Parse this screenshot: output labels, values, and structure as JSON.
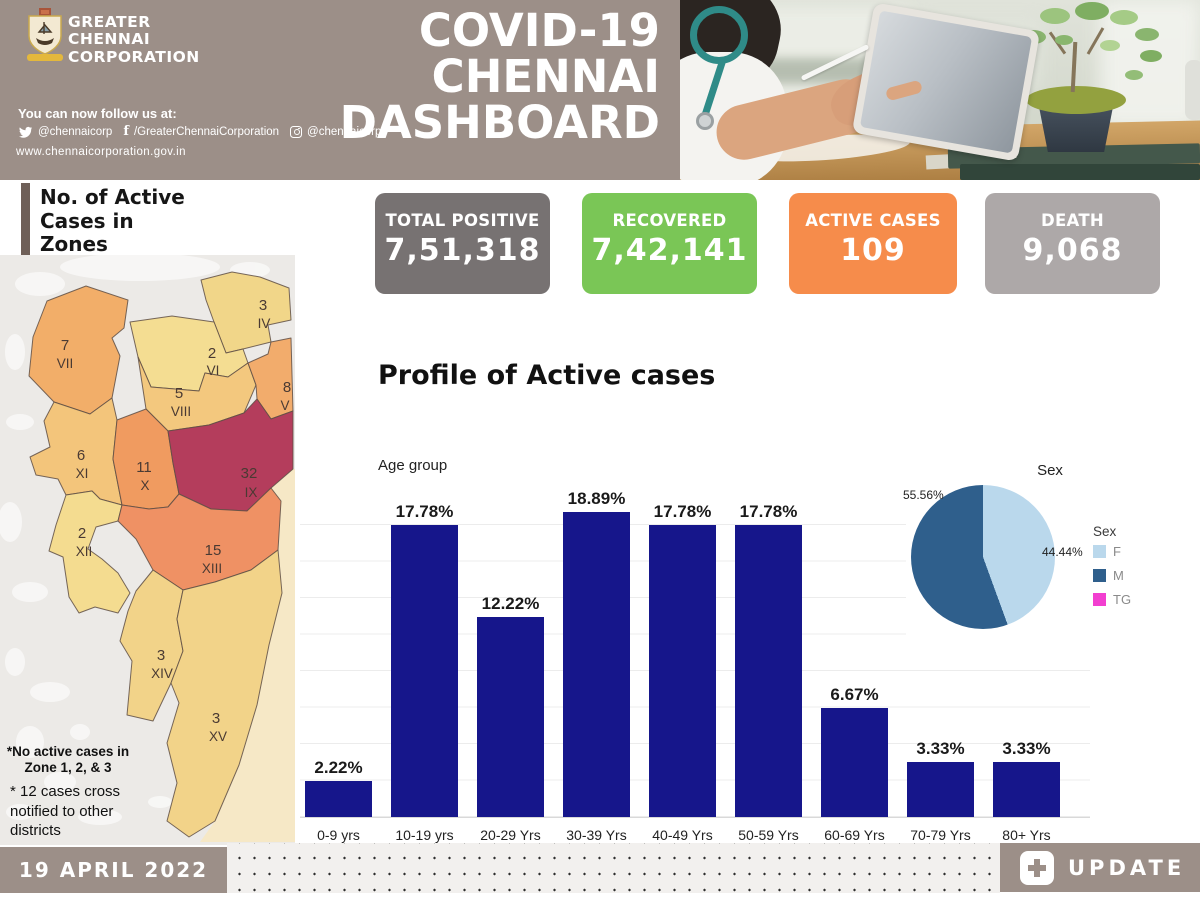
{
  "colors": {
    "brand_taupe": "#9C8F88",
    "bar_navy": "#16168B",
    "card_total": "#777272",
    "card_recovered": "#7AC656",
    "card_active": "#F68C4B",
    "card_death": "#ADA8A8"
  },
  "header": {
    "org_name_lines": [
      "GREATER",
      "CHENNAI",
      "CORPORATION"
    ],
    "follow_text": "You can now follow us at:",
    "social": {
      "twitter_handle": "@chennaicorp",
      "facebook_handle": "/GreaterChennaiCorporation",
      "instagram_handle": "@chennaicorp"
    },
    "website": "www.chennaicorporation.gov.in",
    "title_lines": [
      "COVID-19",
      "CHENNAI",
      "DASHBOARD"
    ]
  },
  "stats": [
    {
      "label": "TOTAL POSITIVE",
      "value": "7,51,318",
      "color": "#777272"
    },
    {
      "label": "RECOVERED",
      "value": "7,42,141",
      "color": "#7AC656"
    },
    {
      "label": "ACTIVE CASES",
      "value": "109",
      "color": "#F68C4B"
    },
    {
      "label": "DEATH",
      "value": "9,068",
      "color": "#ADA8A8"
    }
  ],
  "map": {
    "title_lines": [
      "No. of Active",
      "Cases in",
      "Zones"
    ],
    "zones": [
      {
        "id": "VII",
        "cases": "7",
        "numeral": "VII",
        "color": "#F2AE69"
      },
      {
        "id": "IV",
        "cases": "3",
        "numeral": "IV",
        "color": "#F1D689"
      },
      {
        "id": "VI",
        "cases": "2",
        "numeral": "VI",
        "color": "#F4DD92"
      },
      {
        "id": "VIII",
        "cases": "5",
        "numeral": "VIII",
        "color": "#F3C87E"
      },
      {
        "id": "V",
        "cases": "8",
        "numeral": "V",
        "color": "#F2AC6C"
      },
      {
        "id": "XI",
        "cases": "6",
        "numeral": "XI",
        "color": "#F3C57B"
      },
      {
        "id": "X",
        "cases": "11",
        "numeral": "X",
        "color": "#F09B60"
      },
      {
        "id": "IX",
        "cases": "32",
        "numeral": "IX",
        "color": "#B43D5C"
      },
      {
        "id": "XII",
        "cases": "2",
        "numeral": "XII",
        "color": "#F4DC90"
      },
      {
        "id": "XIII",
        "cases": "15",
        "numeral": "XIII",
        "color": "#EF9164"
      },
      {
        "id": "XIV",
        "cases": "3",
        "numeral": "XIV",
        "color": "#F2D389"
      },
      {
        "id": "XV",
        "cases": "3",
        "numeral": "XV",
        "color": "#F2D389"
      }
    ],
    "notes_bold": [
      "*No active cases in",
      "Zone 1, 2, & 3"
    ],
    "notes": [
      "* 12  cases cross",
      "notified to other",
      "districts"
    ]
  },
  "profile": {
    "section_title": "Profile of Active cases"
  },
  "chart_data": [
    {
      "type": "bar",
      "title": "Age group",
      "categories": [
        "0-9 yrs",
        "10-19 yrs",
        "20-29 Yrs",
        "30-39 Yrs",
        "40-49 Yrs",
        "50-59 Yrs",
        "60-69 Yrs",
        "70-79 Yrs",
        "80+ Yrs"
      ],
      "values": [
        2.22,
        17.78,
        12.22,
        18.89,
        17.78,
        17.78,
        6.67,
        3.33,
        3.33
      ],
      "unit": "%",
      "bar_color": "#16168B",
      "ylim": [
        0,
        20
      ],
      "grid": true,
      "value_labels": true,
      "xlabel": "",
      "ylabel": ""
    },
    {
      "type": "pie",
      "title": "Sex",
      "legend_title": "Sex",
      "categories": [
        "F",
        "M",
        "TG"
      ],
      "values": [
        44.44,
        55.56,
        0
      ],
      "colors": [
        "#BAD8EC",
        "#2F5F8C",
        "#F23FD0"
      ],
      "outside_labels": [
        "44.44%",
        "55.56%"
      ],
      "legend_position": "right"
    }
  ],
  "footer": {
    "date": "19 APRIL 2022",
    "update_label": "UPDATE"
  }
}
